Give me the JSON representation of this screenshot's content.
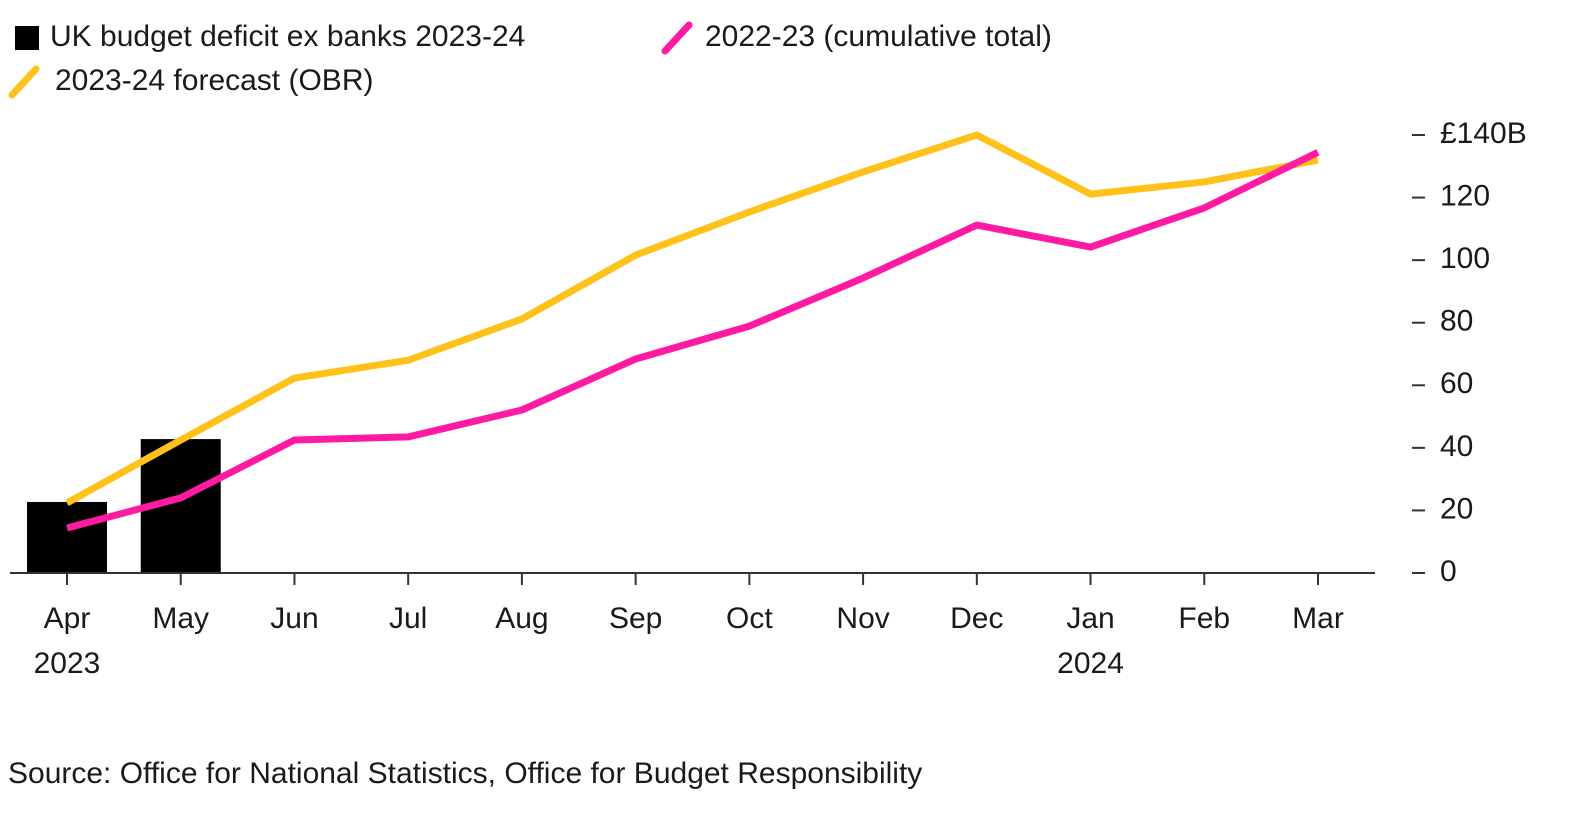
{
  "chart_data": {
    "type": "bar",
    "categories": [
      "Apr",
      "May",
      "Jun",
      "Jul",
      "Aug",
      "Sep",
      "Oct",
      "Nov",
      "Dec",
      "Jan",
      "Feb",
      "Mar"
    ],
    "category_sublabels": [
      "2023",
      null,
      null,
      null,
      null,
      null,
      null,
      null,
      null,
      "2024",
      null,
      null
    ],
    "series": [
      {
        "name": "UK budget deficit ex banks 2023-24",
        "type": "bar",
        "color": "#000000",
        "values": [
          22.7,
          42.8,
          null,
          null,
          null,
          null,
          null,
          null,
          null,
          null,
          null,
          null
        ]
      },
      {
        "name": "2022-23 (cumulative total)",
        "type": "line",
        "color": "#ff1aa3",
        "values": [
          14.4,
          24,
          42.5,
          43.5,
          52.1,
          68.4,
          78.9,
          94.3,
          111.2,
          104.2,
          116.7,
          134.5
        ]
      },
      {
        "name": "2023-24 forecast (OBR)",
        "type": "line",
        "color": "#ffc21a",
        "values": [
          22.4,
          42.5,
          62.3,
          68,
          81.2,
          101.6,
          115.4,
          128.2,
          140,
          121.1,
          125,
          132
        ]
      }
    ],
    "ylim": [
      0,
      140
    ],
    "yticks": [
      0,
      20,
      40,
      60,
      80,
      100,
      120,
      {
        "value": 140,
        "label": "£140B"
      }
    ],
    "source": "Source: Office for National Statistics, Office for Budget Responsibility"
  }
}
